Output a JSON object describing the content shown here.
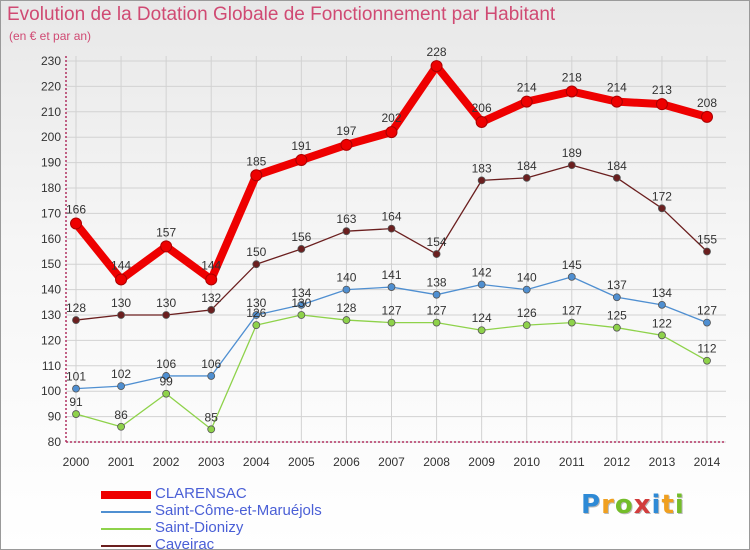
{
  "chart_data": {
    "type": "line",
    "title": "Evolution de la Dotation Globale de Fonctionnement par Habitant",
    "subtitle": "(en € et par an)",
    "xlabel": "",
    "ylabel": "",
    "x": [
      "2000",
      "2001",
      "2002",
      "2003",
      "2004",
      "2005",
      "2006",
      "2007",
      "2008",
      "2009",
      "2010",
      "2011",
      "2012",
      "2013",
      "2014"
    ],
    "ylim": [
      80,
      230
    ],
    "yticks": [
      80,
      90,
      100,
      110,
      120,
      130,
      140,
      150,
      160,
      170,
      180,
      190,
      200,
      210,
      220,
      230
    ],
    "grid": true,
    "legend_position": "bottom-left",
    "series": [
      {
        "name": "CLARENSAC",
        "color": "#ee0000",
        "values": [
          166,
          144,
          157,
          144,
          185,
          191,
          197,
          202,
          228,
          206,
          214,
          218,
          214,
          213,
          208
        ]
      },
      {
        "name": "Saint-Côme-et-Maruéjols",
        "color": "#4f8fd1",
        "values": [
          101,
          102,
          106,
          106,
          130,
          134,
          140,
          141,
          138,
          142,
          140,
          145,
          137,
          134,
          127
        ]
      },
      {
        "name": "Saint-Dionizy",
        "color": "#8ed24a",
        "values": [
          91,
          86,
          99,
          85,
          126,
          130,
          128,
          127,
          127,
          124,
          126,
          127,
          125,
          122,
          112
        ]
      },
      {
        "name": "Caveirac",
        "color": "#6b1f1f",
        "values": [
          128,
          130,
          130,
          132,
          150,
          156,
          163,
          164,
          154,
          183,
          184,
          189,
          184,
          172,
          155
        ]
      }
    ]
  },
  "brand": {
    "letters": [
      "P",
      "r",
      "o",
      "x",
      "i",
      "t",
      "i"
    ],
    "colors": [
      "#2e8ad6",
      "#f0a020",
      "#74bd2a",
      "#d23d3d",
      "#2e8ad6",
      "#f0a020",
      "#74bd2a"
    ]
  }
}
